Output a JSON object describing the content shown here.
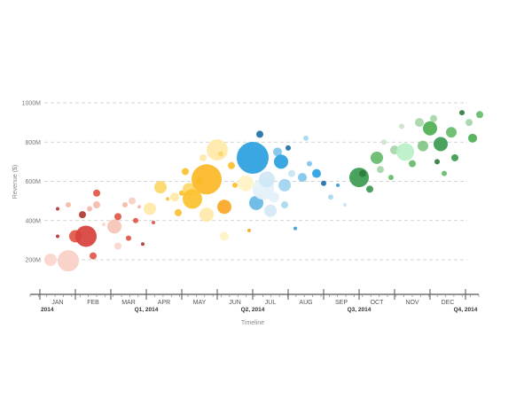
{
  "chart_data": {
    "type": "scatter",
    "variant": "bubble",
    "xlabel": "Timeline",
    "ylabel": "Revenue ($)",
    "y_ticks": [
      {
        "value": 200,
        "label": "200M"
      },
      {
        "value": 400,
        "label": "400M"
      },
      {
        "value": 600,
        "label": "600M"
      },
      {
        "value": 800,
        "label": "800M"
      },
      {
        "value": 1000,
        "label": "1000M"
      }
    ],
    "ylim": [
      0,
      1000
    ],
    "xlim": [
      0,
      12
    ],
    "grid": "horizontal-dashed",
    "legend": "none",
    "months": [
      "JAN",
      "FEB",
      "MAR",
      "APR",
      "MAY",
      "JUN",
      "JUL",
      "AUG",
      "SEP",
      "OCT",
      "NOV",
      "DEC"
    ],
    "year_label": "2014",
    "quarter_labels": [
      {
        "value": 3,
        "label": "Q1, 2014"
      },
      {
        "value": 6,
        "label": "Q2, 2014"
      },
      {
        "value": 9,
        "label": "Q3, 2014"
      },
      {
        "value": 12,
        "label": "Q4, 2014"
      }
    ],
    "series": [
      {
        "quarter": "Q1",
        "points": [
          {
            "x": 0.3,
            "y": 200,
            "r": 7,
            "c": "#fbd5cc"
          },
          {
            "x": 0.8,
            "y": 195,
            "r": 12,
            "c": "#f8cfc4"
          },
          {
            "x": 0.5,
            "y": 320,
            "r": 2,
            "c": "#b03a2e"
          },
          {
            "x": 0.5,
            "y": 460,
            "r": 2,
            "c": "#b03a2e"
          },
          {
            "x": 0.8,
            "y": 480,
            "r": 3,
            "c": "#f4b8a8"
          },
          {
            "x": 1.0,
            "y": 320,
            "r": 7,
            "c": "#e15544"
          },
          {
            "x": 1.3,
            "y": 320,
            "r": 12,
            "c": "#d7403a"
          },
          {
            "x": 1.2,
            "y": 430,
            "r": 4,
            "c": "#b03a2e"
          },
          {
            "x": 1.4,
            "y": 460,
            "r": 3,
            "c": "#f4b8a8"
          },
          {
            "x": 1.5,
            "y": 220,
            "r": 4,
            "c": "#e15544"
          },
          {
            "x": 1.6,
            "y": 480,
            "r": 4,
            "c": "#f4b8a8"
          },
          {
            "x": 1.6,
            "y": 540,
            "r": 4,
            "c": "#e15544"
          },
          {
            "x": 1.8,
            "y": 380,
            "r": 2,
            "c": "#fbd5cc"
          },
          {
            "x": 2.1,
            "y": 370,
            "r": 8,
            "c": "#f6c4b5"
          },
          {
            "x": 2.2,
            "y": 420,
            "r": 4,
            "c": "#e15544"
          },
          {
            "x": 2.2,
            "y": 270,
            "r": 4,
            "c": "#fbd5cc"
          },
          {
            "x": 2.4,
            "y": 480,
            "r": 3,
            "c": "#f4b8a8"
          },
          {
            "x": 2.5,
            "y": 310,
            "r": 3,
            "c": "#e15544"
          },
          {
            "x": 2.6,
            "y": 500,
            "r": 4,
            "c": "#f8cfc4"
          },
          {
            "x": 2.7,
            "y": 400,
            "r": 3,
            "c": "#e15544"
          },
          {
            "x": 2.8,
            "y": 470,
            "r": 2,
            "c": "#f4b8a8"
          },
          {
            "x": 2.9,
            "y": 280,
            "r": 2,
            "c": "#b03a2e"
          }
        ]
      },
      {
        "quarter": "Q2",
        "points": [
          {
            "x": 3.1,
            "y": 460,
            "r": 7,
            "c": "#ffe9a8"
          },
          {
            "x": 3.2,
            "y": 390,
            "r": 2,
            "c": "#e15544"
          },
          {
            "x": 3.4,
            "y": 570,
            "r": 7,
            "c": "#fdd867"
          },
          {
            "x": 3.6,
            "y": 510,
            "r": 2,
            "c": "#fbc02d"
          },
          {
            "x": 3.8,
            "y": 520,
            "r": 5,
            "c": "#ffe9a8"
          },
          {
            "x": 3.9,
            "y": 440,
            "r": 4,
            "c": "#fbc02d"
          },
          {
            "x": 4.0,
            "y": 540,
            "r": 3,
            "c": "#fbc02d"
          },
          {
            "x": 4.1,
            "y": 650,
            "r": 4,
            "c": "#fbc02d"
          },
          {
            "x": 4.2,
            "y": 560,
            "r": 7,
            "c": "#fdd867"
          },
          {
            "x": 4.3,
            "y": 510,
            "r": 11,
            "c": "#fbc02d"
          },
          {
            "x": 4.5,
            "y": 600,
            "r": 4,
            "c": "#fbc02d"
          },
          {
            "x": 4.6,
            "y": 720,
            "r": 4,
            "c": "#ffe9a8"
          },
          {
            "x": 4.7,
            "y": 610,
            "r": 17,
            "c": "#fbb825"
          },
          {
            "x": 4.7,
            "y": 430,
            "r": 8,
            "c": "#ffe9a8"
          },
          {
            "x": 5.0,
            "y": 760,
            "r": 12,
            "c": "#ffe9a8"
          },
          {
            "x": 5.2,
            "y": 470,
            "r": 8,
            "c": "#f9a825"
          },
          {
            "x": 5.2,
            "y": 320,
            "r": 5,
            "c": "#fff3c4"
          },
          {
            "x": 5.4,
            "y": 680,
            "r": 4,
            "c": "#fbc02d"
          },
          {
            "x": 5.5,
            "y": 580,
            "r": 3,
            "c": "#fbc02d"
          },
          {
            "x": 5.8,
            "y": 590,
            "r": 9,
            "c": "#fff3c4"
          },
          {
            "x": 5.9,
            "y": 350,
            "r": 2,
            "c": "#f9a825"
          },
          {
            "x": 5.1,
            "y": 740,
            "r": 3,
            "c": "#fdd867"
          }
        ]
      },
      {
        "quarter": "Q3",
        "points": [
          {
            "x": 6.0,
            "y": 720,
            "r": 18,
            "c": "#2a9fe0"
          },
          {
            "x": 6.1,
            "y": 490,
            "r": 8,
            "c": "#64b8e6"
          },
          {
            "x": 6.3,
            "y": 560,
            "r": 12,
            "c": "#e3f1fa"
          },
          {
            "x": 6.4,
            "y": 610,
            "r": 9,
            "c": "#cfe7f5"
          },
          {
            "x": 6.5,
            "y": 450,
            "r": 7,
            "c": "#d4e9f6"
          },
          {
            "x": 6.6,
            "y": 520,
            "r": 6,
            "c": "#e3f1fa"
          },
          {
            "x": 6.7,
            "y": 750,
            "r": 5,
            "c": "#7fc6ea"
          },
          {
            "x": 6.8,
            "y": 700,
            "r": 8,
            "c": "#2a9fe0"
          },
          {
            "x": 6.9,
            "y": 580,
            "r": 7,
            "c": "#9fd3ef"
          },
          {
            "x": 6.9,
            "y": 480,
            "r": 4,
            "c": "#a8d8f0"
          },
          {
            "x": 7.0,
            "y": 770,
            "r": 3,
            "c": "#1f6fa8"
          },
          {
            "x": 7.1,
            "y": 640,
            "r": 4,
            "c": "#c8e4f4"
          },
          {
            "x": 7.2,
            "y": 360,
            "r": 2,
            "c": "#2a9fe0"
          },
          {
            "x": 7.4,
            "y": 620,
            "r": 5,
            "c": "#7fc6ea"
          },
          {
            "x": 7.5,
            "y": 820,
            "r": 3,
            "c": "#a8d8f0"
          },
          {
            "x": 7.6,
            "y": 690,
            "r": 3,
            "c": "#7fc6ea"
          },
          {
            "x": 7.8,
            "y": 640,
            "r": 5,
            "c": "#2a9fe0"
          },
          {
            "x": 8.0,
            "y": 590,
            "r": 3,
            "c": "#1f6fa8"
          },
          {
            "x": 8.2,
            "y": 520,
            "r": 3,
            "c": "#a8d8f0"
          },
          {
            "x": 8.4,
            "y": 580,
            "r": 2,
            "c": "#2a9fe0"
          },
          {
            "x": 8.6,
            "y": 480,
            "r": 2,
            "c": "#c8e4f4"
          },
          {
            "x": 6.2,
            "y": 840,
            "r": 4,
            "c": "#1f6fa8"
          }
        ]
      },
      {
        "quarter": "Q4",
        "points": [
          {
            "x": 9.0,
            "y": 620,
            "r": 11,
            "c": "#3a9a50"
          },
          {
            "x": 9.1,
            "y": 640,
            "r": 4,
            "c": "#2e7d3e"
          },
          {
            "x": 9.3,
            "y": 560,
            "r": 4,
            "c": "#3a9a50"
          },
          {
            "x": 9.5,
            "y": 720,
            "r": 7,
            "c": "#66bb6a"
          },
          {
            "x": 9.6,
            "y": 660,
            "r": 4,
            "c": "#a5d6a7"
          },
          {
            "x": 9.7,
            "y": 800,
            "r": 3,
            "c": "#c8e6c9"
          },
          {
            "x": 9.9,
            "y": 620,
            "r": 3,
            "c": "#66bb6a"
          },
          {
            "x": 10.0,
            "y": 760,
            "r": 5,
            "c": "#a5d6a7"
          },
          {
            "x": 10.2,
            "y": 880,
            "r": 3,
            "c": "#c8e6c9"
          },
          {
            "x": 10.3,
            "y": 750,
            "r": 10,
            "c": "#b9f0c8"
          },
          {
            "x": 10.5,
            "y": 690,
            "r": 4,
            "c": "#66bb6a"
          },
          {
            "x": 10.7,
            "y": 900,
            "r": 5,
            "c": "#a5d6a7"
          },
          {
            "x": 10.8,
            "y": 780,
            "r": 6,
            "c": "#81c784"
          },
          {
            "x": 11.0,
            "y": 870,
            "r": 8,
            "c": "#4caf50"
          },
          {
            "x": 11.1,
            "y": 920,
            "r": 4,
            "c": "#a5d6a7"
          },
          {
            "x": 11.2,
            "y": 700,
            "r": 3,
            "c": "#2e7d3e"
          },
          {
            "x": 11.3,
            "y": 790,
            "r": 8,
            "c": "#3a9a50"
          },
          {
            "x": 11.4,
            "y": 640,
            "r": 3,
            "c": "#66bb6a"
          },
          {
            "x": 11.6,
            "y": 850,
            "r": 6,
            "c": "#66bb6a"
          },
          {
            "x": 11.7,
            "y": 720,
            "r": 4,
            "c": "#3a9a50"
          },
          {
            "x": 11.9,
            "y": 950,
            "r": 3,
            "c": "#2e7d3e"
          },
          {
            "x": 12.1,
            "y": 900,
            "r": 4,
            "c": "#a5d6a7"
          },
          {
            "x": 12.2,
            "y": 820,
            "r": 5,
            "c": "#4caf50"
          },
          {
            "x": 12.4,
            "y": 940,
            "r": 4,
            "c": "#66bb6a"
          }
        ]
      }
    ]
  }
}
